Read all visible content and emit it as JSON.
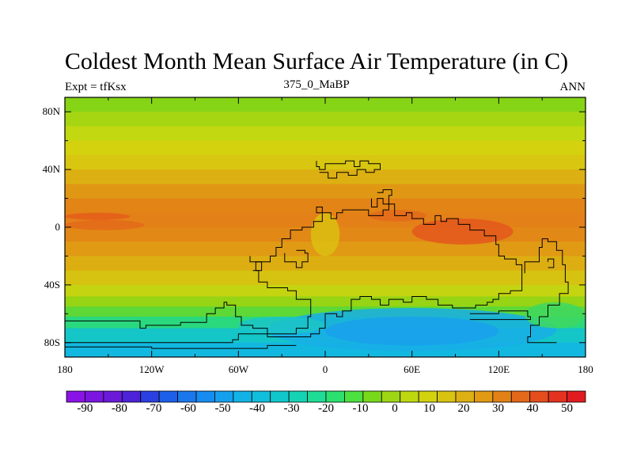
{
  "title": "Coldest Month Mean Surface Air Temperature (in C)",
  "subtitle_left": "Expt = tfKsx",
  "subtitle_center": "375_0_MaBP",
  "subtitle_right": "ANN",
  "lat_ticks": [
    "80N",
    "40N",
    "0",
    "40S",
    "80S"
  ],
  "lat_tick_values": [
    80,
    40,
    0,
    -40,
    -80
  ],
  "lon_ticks": [
    "180",
    "120W",
    "60W",
    "0",
    "60E",
    "120E",
    "180"
  ],
  "lon_tick_values": [
    -180,
    -120,
    -60,
    0,
    60,
    120,
    180
  ],
  "colorbar": {
    "labels": [
      "-90",
      "-80",
      "-70",
      "-60",
      "-50",
      "-40",
      "-30",
      "-20",
      "-10",
      "0",
      "10",
      "20",
      "30",
      "40",
      "50"
    ],
    "colors": [
      "#8a14e6",
      "#7a16e0",
      "#6a1ad8",
      "#4d22d8",
      "#2a40e0",
      "#1d5fe8",
      "#1a78ec",
      "#168cf0",
      "#14a0ee",
      "#12b2e6",
      "#10bedc",
      "#10c8cc",
      "#14d2b4",
      "#1edc96",
      "#2ce070",
      "#4ce040",
      "#78d81a",
      "#9ed614",
      "#bed810",
      "#d2d20e",
      "#d8c410",
      "#dcb012",
      "#e09a14",
      "#e28216",
      "#e4681a",
      "#e44e1c",
      "#e43220",
      "#e01c20"
    ]
  },
  "map": {
    "lat_range": [
      -90,
      90
    ],
    "lon_range": [
      -180,
      180
    ],
    "bands": [
      {
        "from": 90,
        "to": 80,
        "color": "#86d416"
      },
      {
        "from": 80,
        "to": 70,
        "color": "#a6d612"
      },
      {
        "from": 70,
        "to": 60,
        "color": "#c2d810"
      },
      {
        "from": 60,
        "to": 50,
        "color": "#d4d20e"
      },
      {
        "from": 50,
        "to": 40,
        "color": "#d8c610"
      },
      {
        "from": 40,
        "to": 30,
        "color": "#dcb012"
      },
      {
        "from": 30,
        "to": 20,
        "color": "#e09814"
      },
      {
        "from": 20,
        "to": 10,
        "color": "#e28416"
      },
      {
        "from": 10,
        "to": 0,
        "color": "#e48018"
      },
      {
        "from": 0,
        "to": -10,
        "color": "#e28816"
      },
      {
        "from": -10,
        "to": -20,
        "color": "#e09a14"
      },
      {
        "from": -20,
        "to": -30,
        "color": "#dcae12"
      },
      {
        "from": -30,
        "to": -40,
        "color": "#d6c210"
      },
      {
        "from": -40,
        "to": -48,
        "color": "#c4d410"
      },
      {
        "from": -48,
        "to": -55,
        "color": "#96d414"
      },
      {
        "from": -55,
        "to": -62,
        "color": "#5ed836"
      },
      {
        "from": -62,
        "to": -70,
        "color": "#2ad87e"
      },
      {
        "from": -70,
        "to": -80,
        "color": "#14c6c8"
      },
      {
        "from": -80,
        "to": -90,
        "color": "#12b8e0"
      }
    ],
    "patches": [
      {
        "lon": [
          -180,
          -135
        ],
        "lat": [
          10,
          5
        ],
        "color": "#e45e1a"
      },
      {
        "lon": [
          -180,
          -125
        ],
        "lat": [
          5,
          -2
        ],
        "color": "#e46a1a"
      },
      {
        "lon": [
          60,
          130
        ],
        "lat": [
          6,
          -12
        ],
        "color": "#e4581c"
      },
      {
        "lon": [
          30,
          70
        ],
        "lat": [
          12,
          4
        ],
        "color": "#e46a1a"
      },
      {
        "lon": [
          -10,
          10
        ],
        "lat": [
          10,
          -20
        ],
        "color": "#dcc010"
      },
      {
        "lon": [
          -40,
          160
        ],
        "lat": [
          -56,
          -86
        ],
        "color": "#18aee6"
      },
      {
        "lon": [
          0,
          120
        ],
        "lat": [
          -62,
          -82
        ],
        "color": "#1aa0ec"
      },
      {
        "lon": [
          -60,
          0
        ],
        "lat": [
          -62,
          -74
        ],
        "color": "#1cc4c8"
      },
      {
        "lon": [
          138,
          180
        ],
        "lat": [
          -52,
          -70
        ],
        "color": "#40d860"
      }
    ],
    "coastlines": [
      [
        [
          -180,
          -65
        ],
        [
          -128,
          -65
        ],
        [
          -124,
          -70
        ],
        [
          -118,
          -68
        ],
        [
          -100,
          -68
        ],
        [
          -92,
          -66
        ],
        [
          -82,
          -66
        ],
        [
          -76,
          -60
        ],
        [
          -70,
          -56
        ],
        [
          -68,
          -52
        ],
        [
          -62,
          -54
        ],
        [
          -58,
          -62
        ],
        [
          -50,
          -68
        ],
        [
          -40,
          -70
        ],
        [
          -36,
          -74
        ],
        [
          -20,
          -74
        ],
        [
          -12,
          -70
        ],
        [
          -10,
          -62
        ],
        [
          -20,
          -50
        ],
        [
          -26,
          -44
        ],
        [
          -40,
          -42
        ],
        [
          -46,
          -38
        ],
        [
          -48,
          -30
        ],
        [
          -38,
          -24
        ],
        [
          -34,
          -20
        ],
        [
          -30,
          -14
        ],
        [
          -24,
          -8
        ],
        [
          -16,
          -2
        ],
        [
          -8,
          0
        ],
        [
          -2,
          4
        ],
        [
          -6,
          10
        ],
        [
          -2,
          14
        ],
        [
          4,
          10
        ],
        [
          8,
          6
        ],
        [
          12,
          10
        ],
        [
          20,
          12
        ],
        [
          30,
          12
        ],
        [
          40,
          8
        ],
        [
          44,
          12
        ],
        [
          48,
          16
        ],
        [
          56,
          8
        ],
        [
          60,
          10
        ],
        [
          68,
          6
        ],
        [
          76,
          2
        ],
        [
          80,
          8
        ],
        [
          84,
          4
        ],
        [
          92,
          6
        ],
        [
          100,
          2
        ],
        [
          110,
          -2
        ],
        [
          118,
          -6
        ],
        [
          120,
          -12
        ],
        [
          124,
          -20
        ],
        [
          132,
          -22
        ],
        [
          136,
          -26
        ],
        [
          136,
          -36
        ],
        [
          128,
          -44
        ],
        [
          120,
          -46
        ],
        [
          116,
          -50
        ],
        [
          112,
          -52
        ],
        [
          104,
          -54
        ],
        [
          96,
          -56
        ],
        [
          88,
          -56
        ],
        [
          78,
          -54
        ],
        [
          70,
          -50
        ],
        [
          60,
          -48
        ],
        [
          54,
          -52
        ],
        [
          44,
          -50
        ],
        [
          38,
          -54
        ],
        [
          32,
          -50
        ],
        [
          24,
          -48
        ],
        [
          18,
          -50
        ],
        [
          12,
          -58
        ],
        [
          8,
          -62
        ],
        [
          0,
          -60
        ],
        [
          -4,
          -70
        ],
        [
          -10,
          -74
        ],
        [
          -40,
          -76
        ],
        [
          -60,
          -74
        ],
        [
          -64,
          -78
        ],
        [
          -180,
          -80
        ]
      ],
      [
        [
          -180,
          -83
        ],
        [
          -120,
          -83
        ],
        [
          -100,
          -84
        ],
        [
          -60,
          -84
        ],
        [
          -40,
          -84
        ],
        [
          -20,
          -82
        ]
      ],
      [
        [
          138,
          -32
        ],
        [
          148,
          -24
        ],
        [
          150,
          -14
        ],
        [
          154,
          -8
        ],
        [
          160,
          -10
        ],
        [
          164,
          -16
        ],
        [
          166,
          -26
        ],
        [
          168,
          -38
        ],
        [
          162,
          -46
        ],
        [
          154,
          -54
        ],
        [
          148,
          -62
        ],
        [
          142,
          -68
        ],
        [
          140,
          -76
        ],
        [
          150,
          -80
        ],
        [
          160,
          -80
        ]
      ],
      [
        [
          -6,
          46
        ],
        [
          -4,
          42
        ],
        [
          0,
          40
        ],
        [
          6,
          44
        ],
        [
          14,
          44
        ],
        [
          20,
          46
        ],
        [
          24,
          42
        ],
        [
          30,
          46
        ],
        [
          38,
          44
        ],
        [
          34,
          40
        ],
        [
          28,
          38
        ],
        [
          22,
          40
        ],
        [
          16,
          36
        ],
        [
          8,
          38
        ],
        [
          2,
          34
        ],
        [
          -4,
          38
        ]
      ],
      [
        [
          32,
          20
        ],
        [
          36,
          14
        ],
        [
          40,
          20
        ],
        [
          44,
          16
        ],
        [
          46,
          22
        ],
        [
          40,
          26
        ],
        [
          36,
          24
        ]
      ],
      [
        [
          -28,
          -18
        ],
        [
          -20,
          -24
        ],
        [
          -16,
          -28
        ],
        [
          -12,
          -24
        ],
        [
          -14,
          -18
        ],
        [
          -20,
          -16
        ]
      ],
      [
        [
          -52,
          -20
        ],
        [
          -44,
          -24
        ],
        [
          -44,
          -30
        ],
        [
          -50,
          -30
        ]
      ],
      [
        [
          154,
          -24
        ],
        [
          158,
          -22
        ],
        [
          158,
          -28
        ],
        [
          154,
          -28
        ]
      ],
      [
        [
          100,
          -60
        ],
        [
          120,
          -60
        ],
        [
          140,
          -58
        ],
        [
          142,
          -62
        ],
        [
          120,
          -64
        ],
        [
          100,
          -64
        ]
      ]
    ]
  }
}
